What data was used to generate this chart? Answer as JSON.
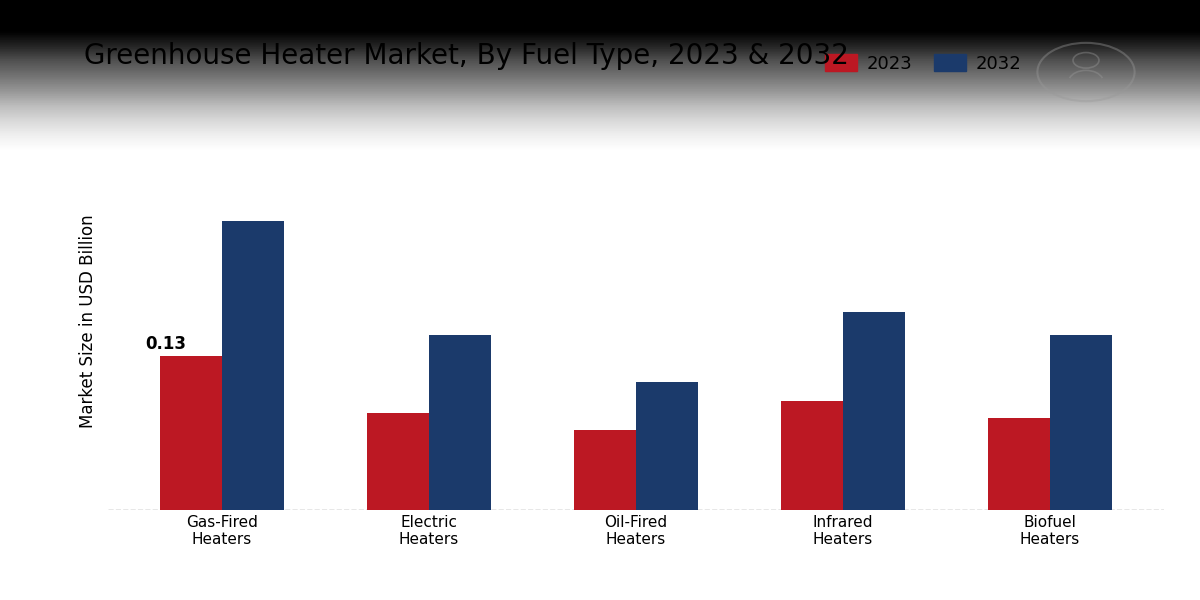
{
  "title": "Greenhouse Heater Market, By Fuel Type, 2023 & 2032",
  "ylabel": "Market Size in USD Billion",
  "categories": [
    "Gas-Fired\nHeaters",
    "Electric\nHeaters",
    "Oil-Fired\nHeaters",
    "Infrared\nHeaters",
    "Biofuel\nHeaters"
  ],
  "values_2023": [
    0.13,
    0.082,
    0.068,
    0.092,
    0.078
  ],
  "values_2032": [
    0.245,
    0.148,
    0.108,
    0.168,
    0.148
  ],
  "color_2023": "#BC1823",
  "color_2032": "#1B3A6B",
  "annotation_label": "0.13",
  "annotation_bar_index": 0,
  "background_color_top": "#DCDCDC",
  "background_color_bottom": "#CCCCCC",
  "background_color": "#D8D8D8",
  "bar_width": 0.3,
  "legend_labels": [
    "2023",
    "2032"
  ],
  "title_fontsize": 20,
  "label_fontsize": 12,
  "tick_fontsize": 11,
  "legend_fontsize": 13,
  "annotation_fontsize": 12,
  "ylim": [
    0,
    0.32
  ],
  "figsize": [
    12.0,
    6.0
  ],
  "dpi": 100
}
